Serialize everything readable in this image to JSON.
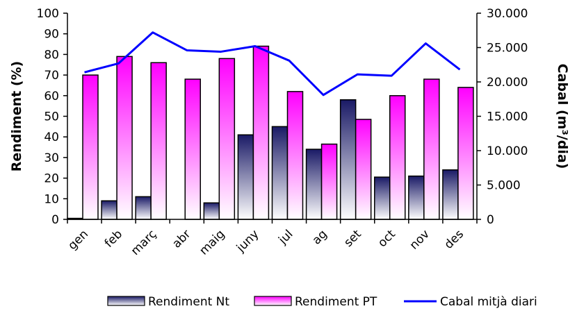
{
  "chart_data": {
    "type": "bar",
    "categories": [
      "gen",
      "feb",
      "març",
      "abr",
      "maig",
      "juny",
      "jul",
      "ag",
      "set",
      "oct",
      "nov",
      "des"
    ],
    "series": [
      {
        "name": "Rendiment Nt",
        "type": "bar",
        "axis": "left",
        "values": [
          0.5,
          9,
          11,
          0,
          8,
          41,
          45,
          34,
          58,
          20.5,
          21,
          24
        ]
      },
      {
        "name": "Rendiment PT",
        "type": "bar",
        "axis": "left",
        "values": [
          70,
          79,
          76,
          68,
          78,
          84,
          62,
          36.5,
          48.5,
          60,
          68,
          64
        ]
      },
      {
        "name": "Cabal mitjà diari",
        "type": "line",
        "axis": "right",
        "values": [
          21400,
          22700,
          27200,
          24600,
          24400,
          25200,
          23100,
          18100,
          21100,
          20900,
          25600,
          21800
        ]
      }
    ],
    "ylabel": "Rendiment (%)",
    "y2label": "Cabal (m³/dia)",
    "ylim": [
      0,
      100
    ],
    "y2lim": [
      0,
      30000
    ],
    "yticks": [
      "0",
      "10",
      "20",
      "30",
      "40",
      "50",
      "60",
      "70",
      "80",
      "90",
      "100"
    ],
    "y2ticks": [
      "0",
      "5.000",
      "10.000",
      "15.000",
      "20.000",
      "25.000",
      "30.000"
    ],
    "grid": false,
    "legend": "bottom",
    "colors": {
      "nt_top": "#1a1a66",
      "nt_bottom": "#ffffff",
      "pt_top": "#ff00ff",
      "pt_bottom": "#ffffff",
      "line": "#0000ff"
    }
  }
}
